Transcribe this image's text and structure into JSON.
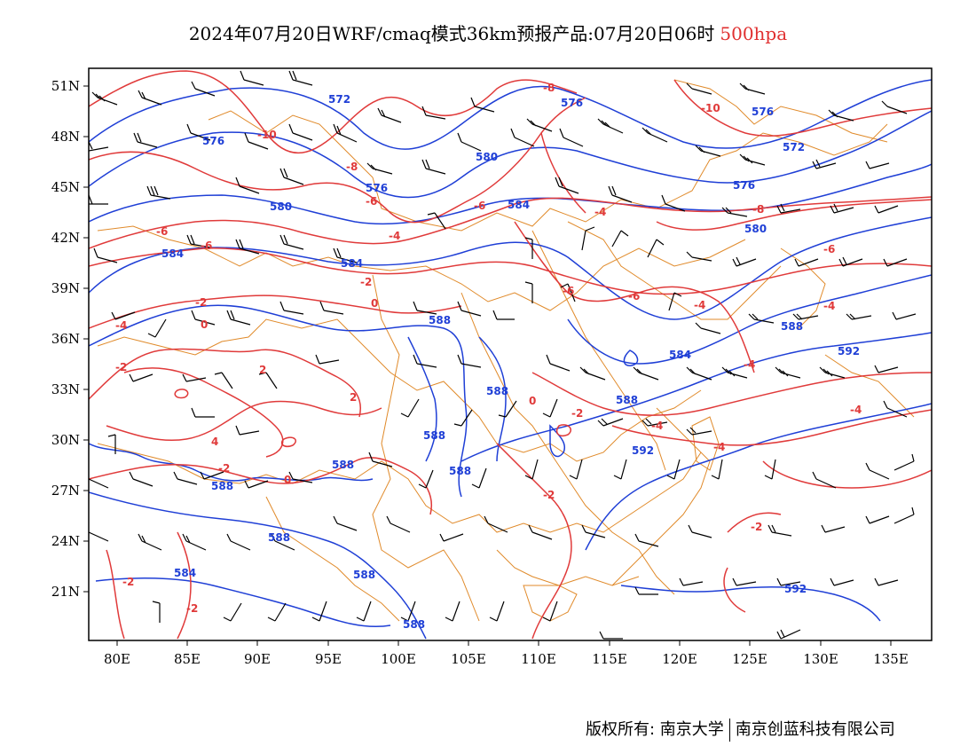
{
  "title": {
    "main": "2024年07月20日WRF/cmaq模式36km预报产品:07月20日06时",
    "level": "500hpa"
  },
  "footer": {
    "left": "版权所有: 南京大学",
    "right": "南京创蓝科技有限公司"
  },
  "axes": {
    "lon_labels": [
      "80E",
      "85E",
      "90E",
      "95E",
      "100E",
      "105E",
      "110E",
      "115E",
      "120E",
      "125E",
      "130E",
      "135E"
    ],
    "lat_labels": [
      "51N",
      "48N",
      "45N",
      "42N",
      "39N",
      "36N",
      "33N",
      "30N",
      "27N",
      "24N",
      "21N"
    ]
  },
  "colors": {
    "height_contour": "#1f3fd6",
    "temperature_contour": "#e03a3a",
    "boundary": "#e08a2a",
    "wind_barb": "#000000"
  },
  "height_labels": [
    "572",
    "576",
    "576",
    "580",
    "576",
    "580",
    "584",
    "584",
    "584",
    "588",
    "576",
    "572",
    "580",
    "576",
    "588",
    "588",
    "588",
    "588",
    "584",
    "592",
    "588",
    "584",
    "588",
    "592",
    "592",
    "588",
    "588",
    "588",
    "588"
  ],
  "temp_labels": [
    "-10",
    "-8",
    "-6",
    "-6",
    "-4",
    "-8",
    "-6",
    "-4",
    "-2",
    "0",
    "-2",
    "-4",
    "-2",
    "2",
    "4",
    "2",
    "-2",
    "0",
    "0",
    "-2",
    "-10",
    "-6",
    "-8",
    "-6",
    "-6",
    "-4",
    "-4",
    "-4",
    "-4",
    "-2",
    "-4",
    "-4",
    "-2",
    "-2",
    "-2",
    "0",
    "-6"
  ]
}
